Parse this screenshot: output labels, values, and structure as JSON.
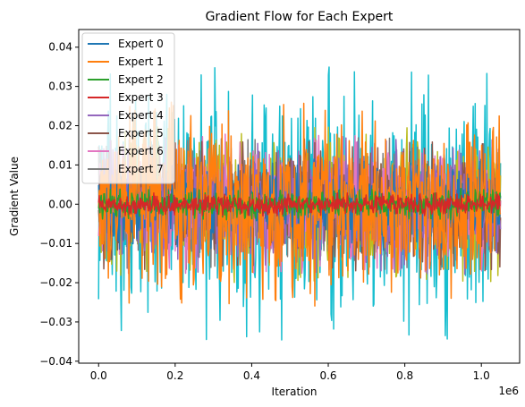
{
  "chart_data": {
    "type": "line",
    "title": "Gradient Flow for Each Expert",
    "xlabel": "Iteration",
    "ylabel": "Gradient Value",
    "x_offset_label": "1e6",
    "xlim": [
      -0.052,
      1.1
    ],
    "ylim": [
      -0.0405,
      0.0445
    ],
    "x_ticks": [
      0.0,
      0.2,
      0.4,
      0.6,
      0.8,
      1.0
    ],
    "x_tick_labels": [
      "0.0",
      "0.2",
      "0.4",
      "0.6",
      "0.8",
      "1.0"
    ],
    "y_ticks": [
      -0.04,
      -0.03,
      -0.02,
      -0.01,
      0.0,
      0.01,
      0.02,
      0.03,
      0.04
    ],
    "y_tick_labels": [
      "−0.04",
      "−0.03",
      "−0.02",
      "−0.01",
      "0.00",
      "0.01",
      "0.02",
      "0.03",
      "0.04"
    ],
    "x_range": [
      0.0,
      1.05
    ],
    "legend_position": "upper left",
    "grid": false,
    "series": [
      {
        "name": "Expert 0",
        "color": "#1f77b4",
        "amplitude": 0.012
      },
      {
        "name": "Expert 1",
        "color": "#ff7f0e",
        "amplitude": 0.026
      },
      {
        "name": "Expert 2",
        "color": "#2ca02c",
        "amplitude": 0.004
      },
      {
        "name": "Expert 3",
        "color": "#d62728",
        "amplitude": 0.003
      },
      {
        "name": "Expert 4",
        "color": "#9467bd",
        "amplitude": 0.018
      },
      {
        "name": "Expert 5",
        "color": "#8c564b",
        "amplitude": 0.017
      },
      {
        "name": "Expert 6",
        "color": "#e377c2",
        "amplitude": 0.018
      },
      {
        "name": "Expert 7",
        "color": "#7f7f7f",
        "amplitude": 0.017
      },
      {
        "name": "",
        "color": "#bcbd22",
        "amplitude": 0.02
      },
      {
        "name": "",
        "color": "#17becf",
        "amplitude": 0.035
      }
    ],
    "draw_order": [
      9,
      8,
      7,
      6,
      5,
      4,
      0,
      1,
      2,
      3
    ]
  }
}
